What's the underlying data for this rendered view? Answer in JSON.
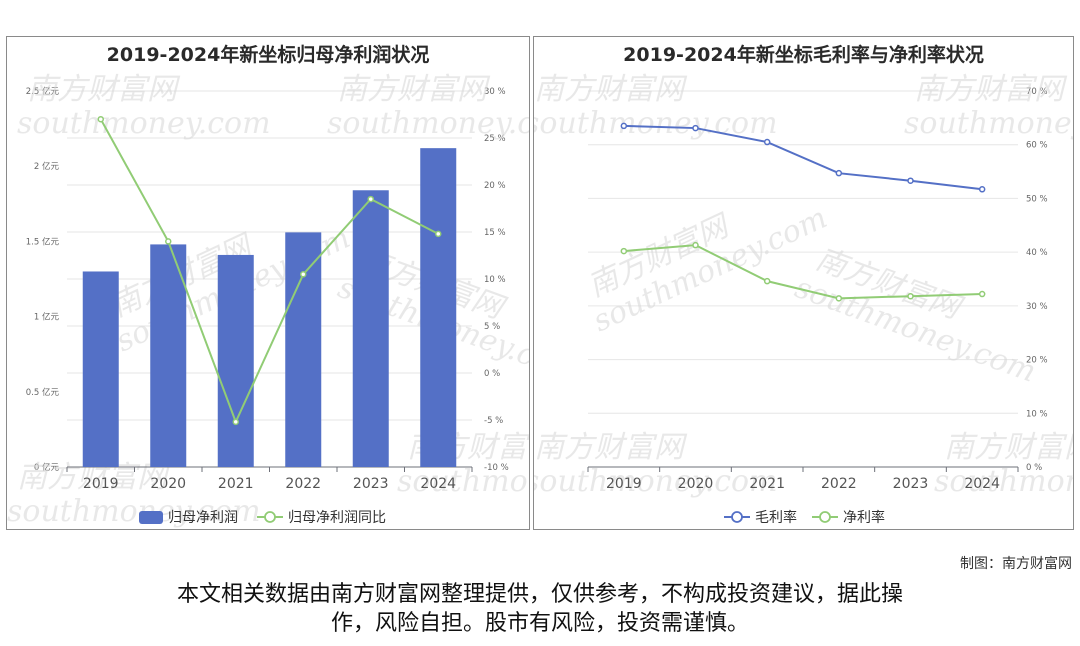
{
  "chart_data": [
    {
      "type": "bar",
      "title": "2019-2024年新坐标归母净利润状况",
      "categories": [
        "2019",
        "2020",
        "2021",
        "2022",
        "2023",
        "2024"
      ],
      "series": [
        {
          "name": "归母净利润",
          "type": "bar",
          "axis": "left",
          "color": "#5470c6",
          "values": [
            1.3,
            1.48,
            1.41,
            1.56,
            1.84,
            2.12
          ]
        },
        {
          "name": "归母净利润同比",
          "type": "line",
          "axis": "right",
          "color": "#91cc75",
          "values": [
            27.0,
            14.0,
            -5.2,
            10.5,
            18.5,
            14.8
          ]
        }
      ],
      "y_left": {
        "ylim": [
          0,
          2.5
        ],
        "ticks": [
          "0 亿元",
          "0.5 亿元",
          "1 亿元",
          "1.5 亿元",
          "2 亿元",
          "2.5 亿元"
        ]
      },
      "y_right": {
        "ylim": [
          -10,
          30
        ],
        "ticks": [
          "-10 %",
          "-5 %",
          "0 %",
          "5 %",
          "10 %",
          "15 %",
          "20 %",
          "25 %",
          "30 %"
        ]
      },
      "grid": true,
      "legend": "bottom-center"
    },
    {
      "type": "line",
      "title": "2019-2024年新坐标毛利率与净利率状况",
      "categories": [
        "2019",
        "2020",
        "2021",
        "2022",
        "2023",
        "2024"
      ],
      "series": [
        {
          "name": "毛利率",
          "color": "#5470c6",
          "values": [
            63.5,
            63.1,
            60.5,
            54.7,
            53.3,
            51.7
          ]
        },
        {
          "name": "净利率",
          "color": "#91cc75",
          "values": [
            40.2,
            41.3,
            34.6,
            31.4,
            31.8,
            32.2
          ]
        }
      ],
      "y_right": {
        "ylim": [
          0,
          70
        ],
        "ticks": [
          "0 %",
          "10 %",
          "20 %",
          "30 %",
          "40 %",
          "50 %",
          "60 %",
          "70 %"
        ]
      },
      "grid": true,
      "legend": "bottom-center"
    }
  ],
  "watermark": {
    "cn": "南方财富网",
    "en": "southmoney.com"
  },
  "credit": "制图：南方财富网",
  "disclaimer_line1": "本文相关数据由南方财富网整理提供，仅供参考，不构成投资建议，据此操",
  "disclaimer_line2": "作，风险自担。股市有风险，投资需谨慎。"
}
